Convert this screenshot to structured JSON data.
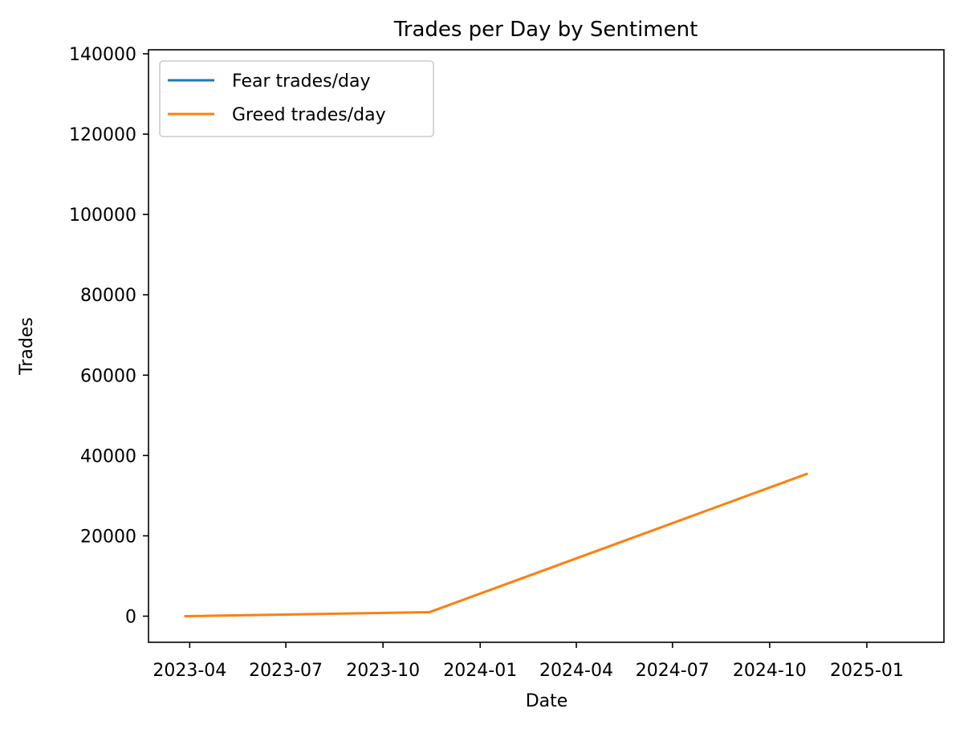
{
  "chart_data": {
    "type": "line",
    "title": "Trades per Day by Sentiment",
    "xlabel": "Date",
    "ylabel": "Trades",
    "xlim": [
      "2023-02-21",
      "2025-03-15"
    ],
    "ylim": [
      -6500,
      141000
    ],
    "x_ticks": [
      "2023-04",
      "2023-07",
      "2023-10",
      "2024-01",
      "2024-04",
      "2024-07",
      "2024-10",
      "2025-01"
    ],
    "y_ticks": [
      0,
      20000,
      40000,
      60000,
      80000,
      100000,
      120000,
      140000
    ],
    "grid": false,
    "legend_position": "top-left",
    "series": [
      {
        "name": "Fear trades/day",
        "color": "#1f77b4",
        "points": []
      },
      {
        "name": "Greed trades/day",
        "color": "#ff7f0e",
        "points": [
          {
            "x": "2023-03-28",
            "y": 0
          },
          {
            "x": "2023-11-14",
            "y": 1000
          },
          {
            "x": "2024-11-05",
            "y": 35400
          }
        ]
      }
    ]
  }
}
